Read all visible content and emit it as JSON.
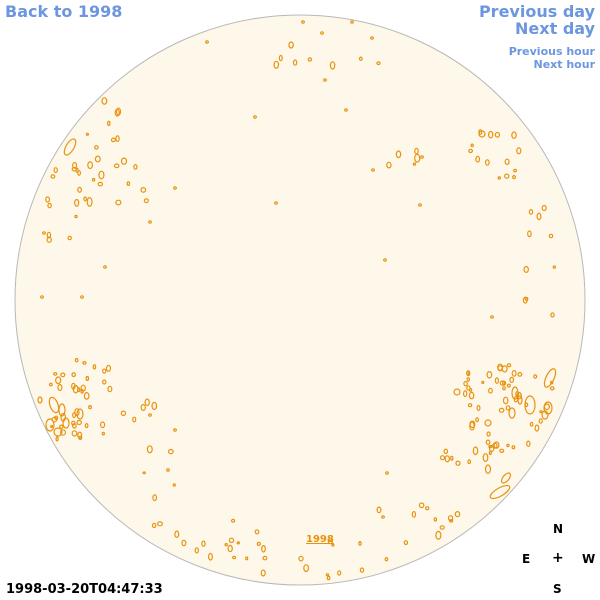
{
  "nav": {
    "back": "Back to 1998",
    "previous_day": "Previous day",
    "next_day": "Next day",
    "previous_hour": "Previous hour",
    "next_hour": "Next hour"
  },
  "disk": {
    "year_label": "1998",
    "fill_color": "#fef8ea",
    "edge_color": "#b8b8b8",
    "contour_color": "#e8920f"
  },
  "timestamp": "1998-03-20T04:47:33",
  "compass": {
    "n": "N",
    "e": "E",
    "center": "+",
    "w": "W",
    "s": "S"
  }
}
